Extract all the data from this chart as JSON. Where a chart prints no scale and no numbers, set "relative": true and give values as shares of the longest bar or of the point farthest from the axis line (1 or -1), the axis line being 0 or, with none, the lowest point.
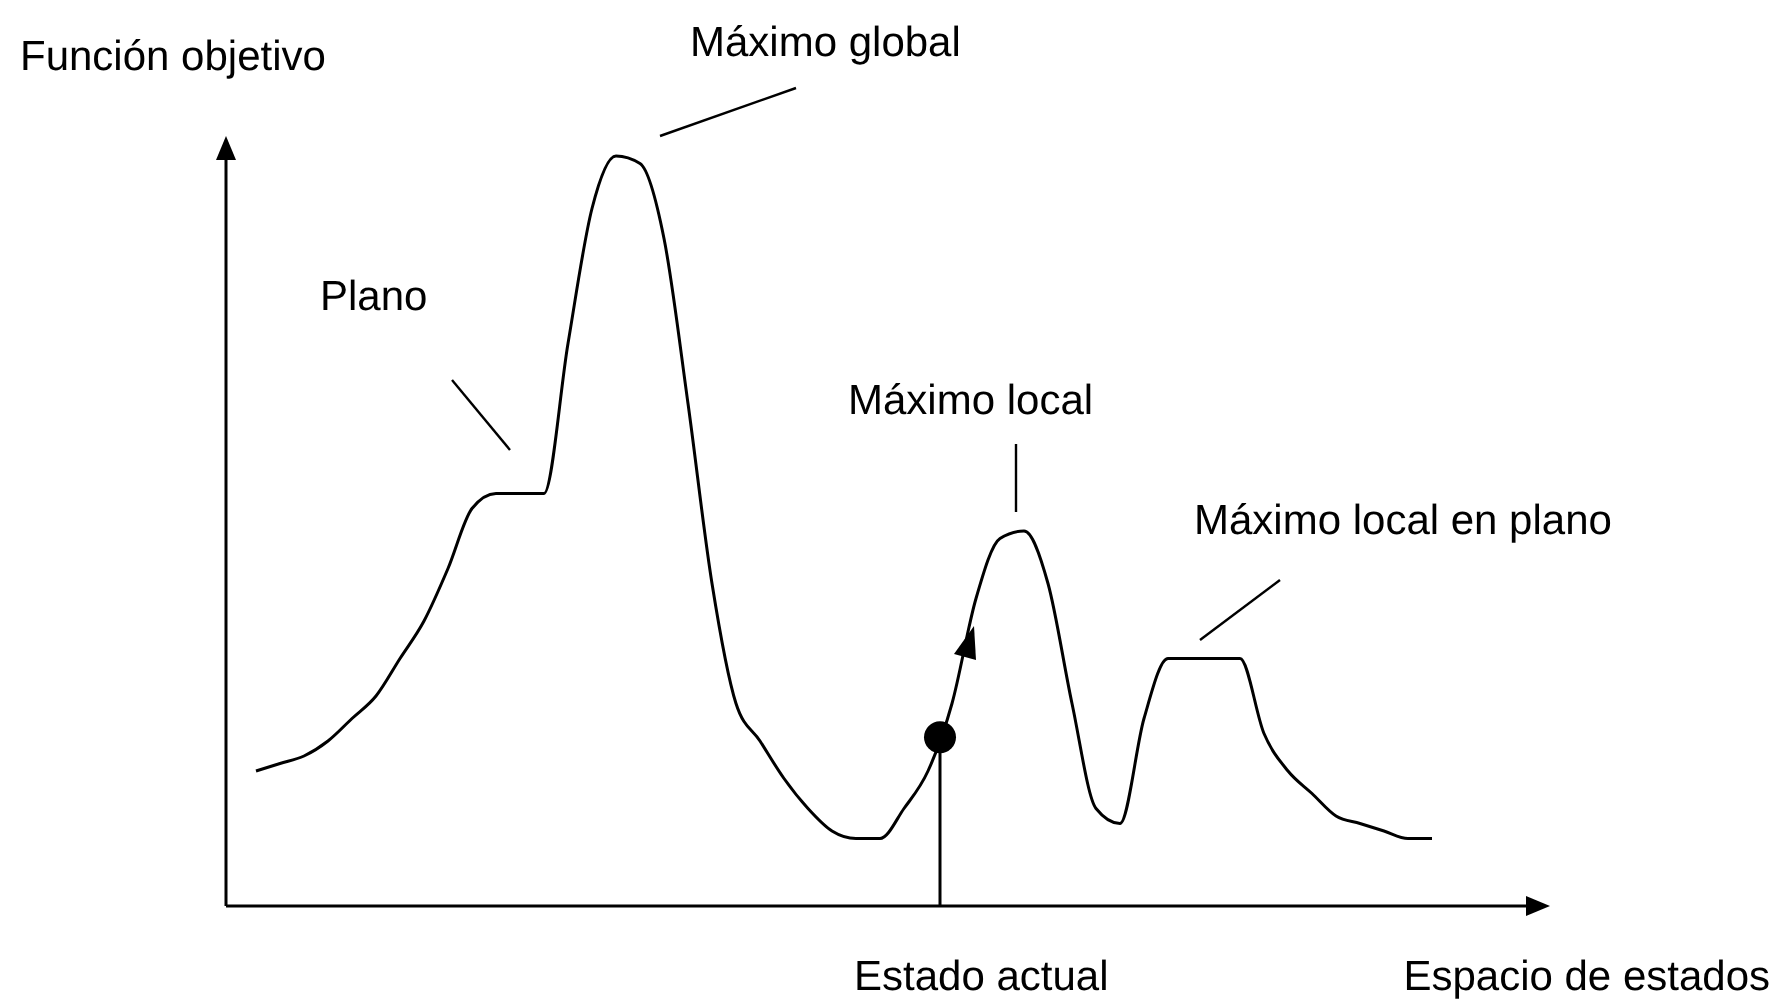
{
  "chart_data": {
    "type": "line",
    "relative": true,
    "xlabel": "Espacio de estados",
    "ylabel": "Función objetivo",
    "categories": [
      null,
      null,
      null,
      null,
      null,
      null,
      null,
      null,
      null,
      null,
      null,
      null,
      null,
      null,
      null,
      null,
      null,
      null,
      null,
      null,
      null,
      null,
      null,
      null,
      null,
      null,
      null,
      null,
      null,
      null,
      null,
      null,
      null,
      null,
      null,
      null,
      null,
      null,
      null,
      null,
      null,
      null,
      null,
      null,
      null,
      null,
      null,
      null,
      null,
      null
    ],
    "series": [
      {
        "color": "#000000",
        "values": [
          0.18,
          0.19,
          0.2,
          0.22,
          0.25,
          0.28,
          0.33,
          0.38,
          0.45,
          0.53,
          0.55,
          0.55,
          0.55,
          0.75,
          0.93,
          1,
          0.99,
          0.89,
          0.67,
          0.43,
          0.27,
          0.22,
          0.17,
          0.13,
          0.1,
          0.09,
          0.09,
          0.13,
          0.18,
          0.27,
          0.41,
          0.49,
          0.5,
          0.43,
          0.27,
          0.13,
          0.11,
          0.25,
          0.33,
          0.33,
          0.33,
          0.33,
          0.23,
          0.18,
          0.15,
          0.12,
          0.11,
          0.1,
          0.09,
          0.09
        ]
      }
    ],
    "annotations": [
      "Plano",
      "Máximo global",
      "Máximo local",
      "Máximo local en plano",
      "Estado actual"
    ],
    "marker": "none",
    "line_style": "solid"
  }
}
